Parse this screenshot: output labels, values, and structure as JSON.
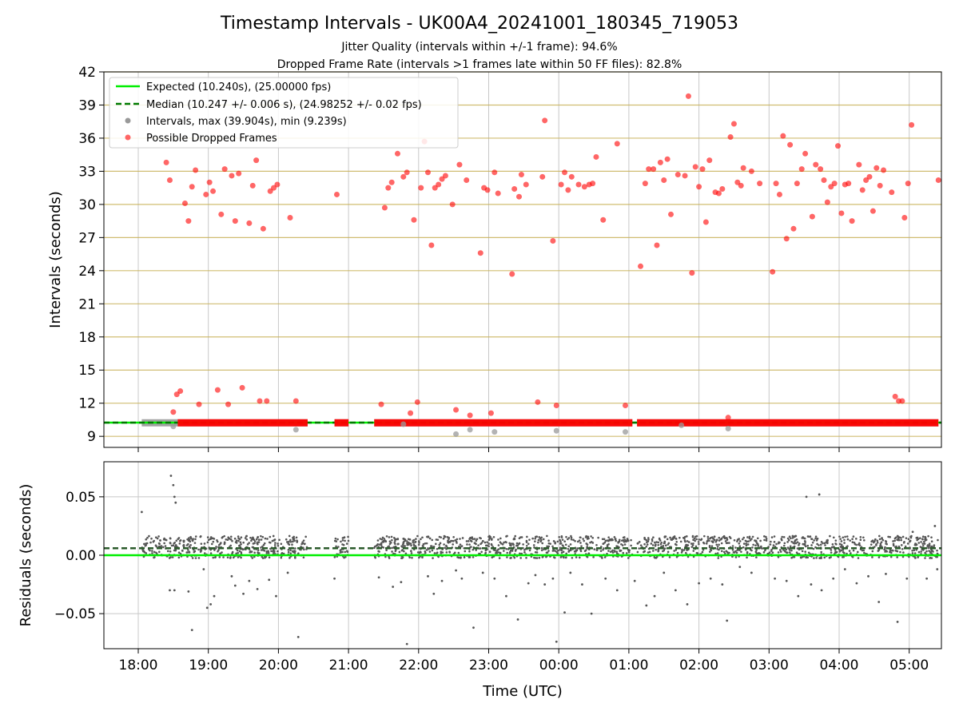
{
  "page": {
    "title": "Timestamp Intervals - UK00A4_20241001_180345_719053",
    "subtitle_1": "Jitter Quality (intervals within +/-1 frame): 94.6%",
    "subtitle_2": "Dropped Frame Rate (intervals >1 frames late within 50 FF files): 82.8%"
  },
  "colors": {
    "expected": "#00ee00",
    "median": "#007a00",
    "intervals": "#999999",
    "dropped": "#ff0000",
    "residuals": "#555555",
    "hgrid_top": "#c8b25a",
    "grid": "#c8c8c8"
  },
  "chart_data": [
    {
      "type": "scatter",
      "ylabel": "Intervals (seconds)",
      "ylim": [
        8,
        42
      ],
      "yticks": [
        "9",
        "12",
        "15",
        "18",
        "21",
        "24",
        "27",
        "30",
        "33",
        "36",
        "39",
        "42"
      ],
      "xrange_hours_note": "shared time axis",
      "legend": {
        "position": "upper-left",
        "entries": [
          "Expected (10.240s), (25.00000 fps)",
          "Median (10.247 +/- 0.006 s), (24.98252 +/- 0.02 fps)",
          "Intervals, max (39.904s), min (9.239s)",
          "Possible Dropped Frames"
        ]
      },
      "expected_value": 10.24,
      "median_value": 10.247,
      "baseline_band": [
        {
          "x0": "18:03",
          "x1": "20:25"
        },
        {
          "x0": "20:48",
          "x1": "21:00"
        },
        {
          "x0": "21:22",
          "x1": "01:03"
        },
        {
          "x0": "01:07",
          "x1": "05:25"
        }
      ],
      "dropped_points": [
        {
          "x": "18:24",
          "y": 33.8
        },
        {
          "x": "18:27",
          "y": 32.2
        },
        {
          "x": "18:30",
          "y": 11.2
        },
        {
          "x": "18:33",
          "y": 12.8
        },
        {
          "x": "18:36",
          "y": 13.1
        },
        {
          "x": "18:40",
          "y": 30.1
        },
        {
          "x": "18:43",
          "y": 28.5
        },
        {
          "x": "18:46",
          "y": 31.6
        },
        {
          "x": "18:49",
          "y": 33.1
        },
        {
          "x": "18:52",
          "y": 11.9
        },
        {
          "x": "18:58",
          "y": 30.9
        },
        {
          "x": "19:01",
          "y": 32.0
        },
        {
          "x": "19:04",
          "y": 31.2
        },
        {
          "x": "19:08",
          "y": 13.2
        },
        {
          "x": "19:11",
          "y": 29.1
        },
        {
          "x": "19:14",
          "y": 33.2
        },
        {
          "x": "19:17",
          "y": 11.9
        },
        {
          "x": "19:20",
          "y": 32.6
        },
        {
          "x": "19:23",
          "y": 28.5
        },
        {
          "x": "19:26",
          "y": 32.8
        },
        {
          "x": "19:29",
          "y": 13.4
        },
        {
          "x": "19:35",
          "y": 28.3
        },
        {
          "x": "19:38",
          "y": 31.7
        },
        {
          "x": "19:41",
          "y": 34.0
        },
        {
          "x": "19:44",
          "y": 12.2
        },
        {
          "x": "19:47",
          "y": 27.8
        },
        {
          "x": "19:50",
          "y": 12.2
        },
        {
          "x": "19:53",
          "y": 31.2
        },
        {
          "x": "19:56",
          "y": 31.5
        },
        {
          "x": "19:59",
          "y": 31.8
        },
        {
          "x": "20:10",
          "y": 28.8
        },
        {
          "x": "20:15",
          "y": 12.2
        },
        {
          "x": "20:50",
          "y": 30.9
        },
        {
          "x": "21:28",
          "y": 11.9
        },
        {
          "x": "21:31",
          "y": 29.7
        },
        {
          "x": "21:34",
          "y": 31.5
        },
        {
          "x": "21:37",
          "y": 32.0
        },
        {
          "x": "21:42",
          "y": 34.6
        },
        {
          "x": "21:47",
          "y": 32.5
        },
        {
          "x": "21:50",
          "y": 32.9
        },
        {
          "x": "21:53",
          "y": 11.1
        },
        {
          "x": "21:56",
          "y": 28.6
        },
        {
          "x": "21:59",
          "y": 12.1
        },
        {
          "x": "22:02",
          "y": 31.5
        },
        {
          "x": "22:05",
          "y": 35.7
        },
        {
          "x": "22:08",
          "y": 32.9
        },
        {
          "x": "22:11",
          "y": 26.3
        },
        {
          "x": "22:14",
          "y": 31.5
        },
        {
          "x": "22:17",
          "y": 31.8
        },
        {
          "x": "22:20",
          "y": 32.3
        },
        {
          "x": "22:23",
          "y": 32.6
        },
        {
          "x": "22:29",
          "y": 30.0
        },
        {
          "x": "22:32",
          "y": 11.4
        },
        {
          "x": "22:35",
          "y": 33.6
        },
        {
          "x": "22:41",
          "y": 32.2
        },
        {
          "x": "22:44",
          "y": 10.9
        },
        {
          "x": "22:53",
          "y": 25.6
        },
        {
          "x": "22:56",
          "y": 31.5
        },
        {
          "x": "22:59",
          "y": 31.3
        },
        {
          "x": "23:02",
          "y": 11.1
        },
        {
          "x": "23:05",
          "y": 32.9
        },
        {
          "x": "23:08",
          "y": 31.0
        },
        {
          "x": "23:20",
          "y": 23.7
        },
        {
          "x": "23:22",
          "y": 31.4
        },
        {
          "x": "23:26",
          "y": 30.7
        },
        {
          "x": "23:28",
          "y": 32.7
        },
        {
          "x": "23:32",
          "y": 31.8
        },
        {
          "x": "23:42",
          "y": 12.1
        },
        {
          "x": "23:46",
          "y": 32.5
        },
        {
          "x": "23:48",
          "y": 37.6
        },
        {
          "x": "23:55",
          "y": 26.7
        },
        {
          "x": "23:58",
          "y": 11.8
        },
        {
          "x": "00:02",
          "y": 31.8
        },
        {
          "x": "00:05",
          "y": 32.9
        },
        {
          "x": "00:08",
          "y": 31.3
        },
        {
          "x": "00:11",
          "y": 32.5
        },
        {
          "x": "00:17",
          "y": 31.8
        },
        {
          "x": "00:22",
          "y": 31.6
        },
        {
          "x": "00:26",
          "y": 31.8
        },
        {
          "x": "00:29",
          "y": 31.9
        },
        {
          "x": "00:32",
          "y": 34.3
        },
        {
          "x": "00:38",
          "y": 28.6
        },
        {
          "x": "00:50",
          "y": 35.5
        },
        {
          "x": "00:57",
          "y": 11.8
        },
        {
          "x": "01:10",
          "y": 24.4
        },
        {
          "x": "01:14",
          "y": 31.9
        },
        {
          "x": "01:17",
          "y": 33.2
        },
        {
          "x": "01:21",
          "y": 33.2
        },
        {
          "x": "01:24",
          "y": 26.3
        },
        {
          "x": "01:27",
          "y": 33.8
        },
        {
          "x": "01:30",
          "y": 32.2
        },
        {
          "x": "01:33",
          "y": 34.1
        },
        {
          "x": "01:36",
          "y": 29.1
        },
        {
          "x": "01:42",
          "y": 32.7
        },
        {
          "x": "01:48",
          "y": 32.6
        },
        {
          "x": "01:51",
          "y": 39.8
        },
        {
          "x": "01:54",
          "y": 23.8
        },
        {
          "x": "01:57",
          "y": 33.4
        },
        {
          "x": "02:00",
          "y": 31.6
        },
        {
          "x": "02:03",
          "y": 33.2
        },
        {
          "x": "02:06",
          "y": 28.4
        },
        {
          "x": "02:09",
          "y": 34.0
        },
        {
          "x": "02:14",
          "y": 31.1
        },
        {
          "x": "02:17",
          "y": 31.0
        },
        {
          "x": "02:20",
          "y": 31.4
        },
        {
          "x": "02:25",
          "y": 10.7
        },
        {
          "x": "02:27",
          "y": 36.1
        },
        {
          "x": "02:30",
          "y": 37.3
        },
        {
          "x": "02:33",
          "y": 32.0
        },
        {
          "x": "02:36",
          "y": 31.7
        },
        {
          "x": "02:38",
          "y": 33.3
        },
        {
          "x": "02:45",
          "y": 33.0
        },
        {
          "x": "02:52",
          "y": 31.9
        },
        {
          "x": "03:03",
          "y": 23.9
        },
        {
          "x": "03:06",
          "y": 31.9
        },
        {
          "x": "03:09",
          "y": 30.9
        },
        {
          "x": "03:12",
          "y": 36.2
        },
        {
          "x": "03:15",
          "y": 26.9
        },
        {
          "x": "03:18",
          "y": 35.4
        },
        {
          "x": "03:21",
          "y": 27.8
        },
        {
          "x": "03:24",
          "y": 31.9
        },
        {
          "x": "03:28",
          "y": 33.2
        },
        {
          "x": "03:31",
          "y": 34.6
        },
        {
          "x": "03:37",
          "y": 28.9
        },
        {
          "x": "03:40",
          "y": 33.6
        },
        {
          "x": "03:44",
          "y": 33.2
        },
        {
          "x": "03:47",
          "y": 32.2
        },
        {
          "x": "03:50",
          "y": 30.2
        },
        {
          "x": "03:53",
          "y": 31.6
        },
        {
          "x": "03:56",
          "y": 31.9
        },
        {
          "x": "03:59",
          "y": 35.3
        },
        {
          "x": "04:02",
          "y": 29.2
        },
        {
          "x": "04:05",
          "y": 31.8
        },
        {
          "x": "04:08",
          "y": 31.9
        },
        {
          "x": "04:11",
          "y": 28.5
        },
        {
          "x": "04:17",
          "y": 33.6
        },
        {
          "x": "04:20",
          "y": 31.3
        },
        {
          "x": "04:23",
          "y": 32.2
        },
        {
          "x": "04:26",
          "y": 32.5
        },
        {
          "x": "04:29",
          "y": 29.4
        },
        {
          "x": "04:32",
          "y": 33.3
        },
        {
          "x": "04:35",
          "y": 31.7
        },
        {
          "x": "04:38",
          "y": 33.1
        },
        {
          "x": "04:45",
          "y": 31.1
        },
        {
          "x": "04:48",
          "y": 12.6
        },
        {
          "x": "04:51",
          "y": 12.2
        },
        {
          "x": "04:54",
          "y": 12.2
        },
        {
          "x": "04:56",
          "y": 28.8
        },
        {
          "x": "04:59",
          "y": 31.9
        },
        {
          "x": "05:02",
          "y": 37.2
        },
        {
          "x": "05:25",
          "y": 32.2
        }
      ],
      "low_interval_points": [
        {
          "x": "18:30",
          "y": 9.9
        },
        {
          "x": "20:15",
          "y": 9.6
        },
        {
          "x": "22:32",
          "y": 9.2
        },
        {
          "x": "22:44",
          "y": 9.6
        },
        {
          "x": "23:05",
          "y": 9.4
        },
        {
          "x": "23:58",
          "y": 9.5
        },
        {
          "x": "00:57",
          "y": 9.4
        },
        {
          "x": "02:25",
          "y": 9.7
        },
        {
          "x": "21:47",
          "y": 10.1
        },
        {
          "x": "01:45",
          "y": 10.0
        }
      ]
    },
    {
      "type": "scatter",
      "xlabel": "Time (UTC)",
      "ylabel": "Residuals (seconds)",
      "ylim": [
        -0.08,
        0.08
      ],
      "yticks": [
        "−0.05",
        "0.00",
        "0.05"
      ],
      "xticks": [
        "18:00",
        "19:00",
        "20:00",
        "21:00",
        "22:00",
        "23:00",
        "00:00",
        "01:00",
        "02:00",
        "03:00",
        "04:00",
        "05:00"
      ],
      "expected_residual": 0.0,
      "median_residual": 0.006,
      "outliers": [
        {
          "x": "18:03",
          "y": 0.037
        },
        {
          "x": "18:28",
          "y": 0.068
        },
        {
          "x": "18:30",
          "y": 0.06
        },
        {
          "x": "18:31",
          "y": 0.05
        },
        {
          "x": "18:32",
          "y": 0.045
        },
        {
          "x": "18:27",
          "y": -0.03
        },
        {
          "x": "18:31",
          "y": -0.03
        },
        {
          "x": "18:43",
          "y": -0.031
        },
        {
          "x": "18:46",
          "y": -0.064
        },
        {
          "x": "18:56",
          "y": -0.012
        },
        {
          "x": "18:59",
          "y": -0.045
        },
        {
          "x": "19:02",
          "y": -0.042
        },
        {
          "x": "19:05",
          "y": -0.035
        },
        {
          "x": "19:20",
          "y": -0.018
        },
        {
          "x": "19:23",
          "y": -0.026
        },
        {
          "x": "19:30",
          "y": -0.033
        },
        {
          "x": "19:35",
          "y": -0.022
        },
        {
          "x": "19:42",
          "y": -0.029
        },
        {
          "x": "19:52",
          "y": -0.021
        },
        {
          "x": "19:58",
          "y": -0.035
        },
        {
          "x": "20:08",
          "y": -0.015
        },
        {
          "x": "20:17",
          "y": -0.07
        },
        {
          "x": "20:48",
          "y": -0.02
        },
        {
          "x": "21:26",
          "y": -0.019
        },
        {
          "x": "21:38",
          "y": -0.027
        },
        {
          "x": "21:45",
          "y": -0.023
        },
        {
          "x": "21:50",
          "y": -0.076
        },
        {
          "x": "22:08",
          "y": -0.018
        },
        {
          "x": "22:13",
          "y": -0.033
        },
        {
          "x": "22:20",
          "y": -0.022
        },
        {
          "x": "22:32",
          "y": -0.013
        },
        {
          "x": "22:37",
          "y": -0.02
        },
        {
          "x": "22:47",
          "y": -0.062
        },
        {
          "x": "22:55",
          "y": -0.015
        },
        {
          "x": "23:05",
          "y": -0.02
        },
        {
          "x": "23:15",
          "y": -0.035
        },
        {
          "x": "23:25",
          "y": -0.055
        },
        {
          "x": "23:34",
          "y": -0.024
        },
        {
          "x": "23:40",
          "y": -0.017
        },
        {
          "x": "23:48",
          "y": -0.025
        },
        {
          "x": "23:55",
          "y": -0.02
        },
        {
          "x": "23:58",
          "y": -0.074
        },
        {
          "x": "00:05",
          "y": -0.049
        },
        {
          "x": "00:10",
          "y": -0.015
        },
        {
          "x": "00:20",
          "y": -0.025
        },
        {
          "x": "00:28",
          "y": -0.05
        },
        {
          "x": "00:40",
          "y": -0.02
        },
        {
          "x": "00:50",
          "y": -0.03
        },
        {
          "x": "01:05",
          "y": -0.022
        },
        {
          "x": "01:15",
          "y": -0.043
        },
        {
          "x": "01:22",
          "y": -0.035
        },
        {
          "x": "01:30",
          "y": -0.015
        },
        {
          "x": "01:40",
          "y": -0.03
        },
        {
          "x": "01:50",
          "y": -0.042
        },
        {
          "x": "02:00",
          "y": -0.024
        },
        {
          "x": "02:10",
          "y": -0.02
        },
        {
          "x": "02:20",
          "y": -0.025
        },
        {
          "x": "02:24",
          "y": -0.056
        },
        {
          "x": "02:35",
          "y": -0.01
        },
        {
          "x": "02:45",
          "y": -0.015
        },
        {
          "x": "03:05",
          "y": -0.02
        },
        {
          "x": "03:15",
          "y": -0.022
        },
        {
          "x": "03:25",
          "y": -0.035
        },
        {
          "x": "03:32",
          "y": 0.05
        },
        {
          "x": "03:36",
          "y": -0.025
        },
        {
          "x": "03:43",
          "y": 0.052
        },
        {
          "x": "03:45",
          "y": -0.03
        },
        {
          "x": "03:55",
          "y": -0.02
        },
        {
          "x": "04:05",
          "y": -0.012
        },
        {
          "x": "04:15",
          "y": -0.024
        },
        {
          "x": "04:25",
          "y": -0.018
        },
        {
          "x": "04:34",
          "y": -0.04
        },
        {
          "x": "04:40",
          "y": -0.016
        },
        {
          "x": "04:50",
          "y": -0.057
        },
        {
          "x": "04:58",
          "y": -0.02
        },
        {
          "x": "05:03",
          "y": 0.02
        },
        {
          "x": "05:07",
          "y": 0.015
        },
        {
          "x": "05:15",
          "y": -0.02
        },
        {
          "x": "05:22",
          "y": 0.025
        },
        {
          "x": "05:24",
          "y": -0.012
        }
      ]
    }
  ]
}
